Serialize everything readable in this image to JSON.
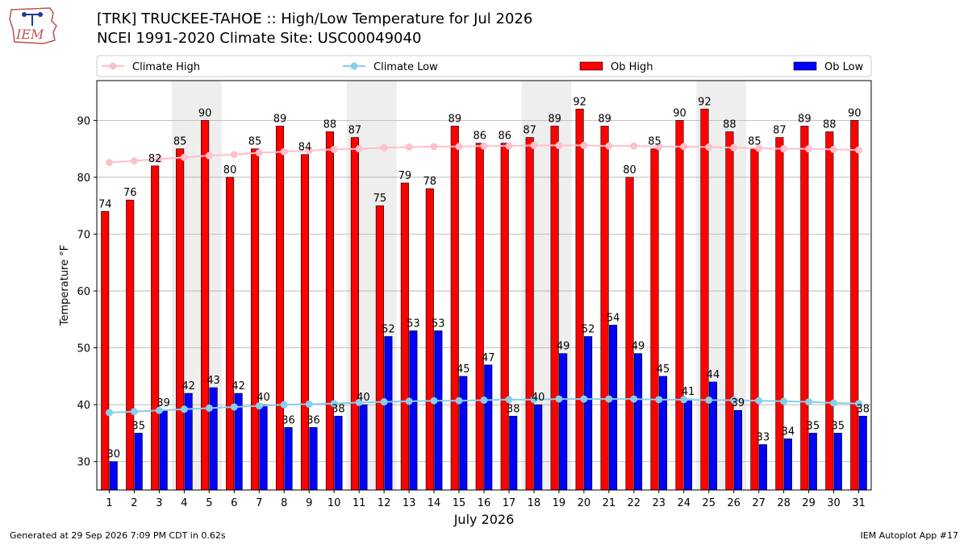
{
  "header": {
    "title_line1": "[TRK] TRUCKEE-TAHOE :: High/Low Temperature for Jul 2026",
    "title_line2": "NCEI 1991-2020 Climate Site: USC00049040",
    "logo_text": "IEM"
  },
  "footer": {
    "left": "Generated at 29 Sep 2026 7:09 PM CDT in 0.62s",
    "right": "IEM Autoplot App #17"
  },
  "colors": {
    "ob_high": "#ff0000",
    "ob_low": "#0000ff",
    "climate_high": "#ffc0cb",
    "climate_low": "#87ceeb",
    "weekend_shade": "#eeeeee",
    "grid": "#b0b0b0"
  },
  "chart_data": {
    "type": "bar",
    "xlabel": "July 2026",
    "ylabel": "Temperature °F",
    "ylim": [
      25,
      97
    ],
    "yticks": [
      30,
      40,
      50,
      60,
      70,
      80,
      90
    ],
    "grid": "horizontal",
    "legend_placement": "top, above plot",
    "categories": [
      "1",
      "2",
      "3",
      "4",
      "5",
      "6",
      "7",
      "8",
      "9",
      "10",
      "11",
      "12",
      "13",
      "14",
      "15",
      "16",
      "17",
      "18",
      "19",
      "20",
      "21",
      "22",
      "23",
      "24",
      "25",
      "26",
      "27",
      "28",
      "29",
      "30",
      "31"
    ],
    "shaded_days": [
      4,
      5,
      11,
      12,
      18,
      19,
      25,
      26
    ],
    "series": [
      {
        "name": "Climate High",
        "kind": "line",
        "values": [
          82.6,
          82.9,
          83.2,
          83.5,
          83.8,
          84.0,
          84.3,
          84.5,
          84.7,
          84.9,
          85.0,
          85.2,
          85.3,
          85.4,
          85.4,
          85.5,
          85.5,
          85.6,
          85.6,
          85.6,
          85.5,
          85.5,
          85.4,
          85.4,
          85.3,
          85.2,
          85.1,
          85.0,
          85.0,
          84.9,
          84.8
        ]
      },
      {
        "name": "Climate Low",
        "kind": "line",
        "values": [
          38.6,
          38.8,
          39.0,
          39.2,
          39.4,
          39.6,
          39.8,
          40.0,
          40.1,
          40.2,
          40.4,
          40.5,
          40.6,
          40.7,
          40.7,
          40.8,
          40.9,
          40.9,
          41.0,
          41.0,
          41.0,
          41.0,
          40.9,
          40.9,
          40.8,
          40.8,
          40.7,
          40.6,
          40.5,
          40.3,
          40.2
        ]
      },
      {
        "name": "Ob High",
        "kind": "bar",
        "values": [
          74,
          76,
          82,
          85,
          90,
          80,
          85,
          89,
          84,
          88,
          87,
          75,
          79,
          78,
          89,
          86,
          86,
          87,
          89,
          92,
          89,
          80,
          85,
          90,
          92,
          88,
          85,
          87,
          89,
          88,
          90
        ]
      },
      {
        "name": "Ob Low",
        "kind": "bar",
        "values": [
          30,
          35,
          39,
          42,
          43,
          42,
          40,
          36,
          36,
          38,
          40,
          52,
          53,
          53,
          45,
          47,
          38,
          40,
          49,
          52,
          54,
          49,
          45,
          41,
          44,
          39,
          33,
          34,
          35,
          35,
          38
        ]
      }
    ]
  }
}
